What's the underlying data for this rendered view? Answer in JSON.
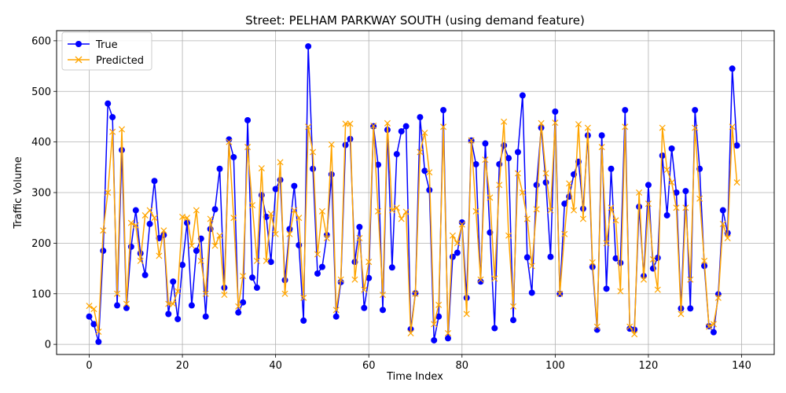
{
  "chart_data": {
    "type": "line",
    "title": "Street: PELHAM PARKWAY SOUTH (using demand feature)",
    "xlabel": "Time Index",
    "ylabel": "Traffic Volume",
    "xlim": [
      -7,
      147
    ],
    "ylim": [
      -20,
      620
    ],
    "xticks": [
      0,
      20,
      40,
      60,
      80,
      100,
      120,
      140
    ],
    "yticks": [
      0,
      100,
      200,
      300,
      400,
      500,
      600
    ],
    "grid": true,
    "legend": "top-left",
    "series": [
      {
        "name": "True",
        "color": "#0000ff",
        "marker": "circle",
        "values": [
          55,
          40,
          5,
          185,
          476,
          449,
          77,
          384,
          72,
          193,
          265,
          180,
          137,
          238,
          323,
          210,
          216,
          60,
          124,
          50,
          157,
          240,
          77,
          185,
          209,
          55,
          228,
          267,
          347,
          112,
          405,
          370,
          63,
          83,
          443,
          132,
          112,
          295,
          252,
          163,
          307,
          325,
          127,
          228,
          313,
          196,
          47,
          589,
          347,
          140,
          153,
          216,
          336,
          55,
          123,
          394,
          406,
          163,
          232,
          72,
          131,
          431,
          355,
          68,
          424,
          152,
          376,
          421,
          431,
          30,
          101,
          449,
          343,
          305,
          8,
          55,
          463,
          12,
          173,
          181,
          241,
          92,
          403,
          356,
          124,
          397,
          221,
          32,
          356,
          393,
          368,
          48,
          380,
          492,
          172,
          102,
          315,
          428,
          320,
          173,
          460,
          100,
          278,
          292,
          336,
          361,
          268,
          413,
          153,
          29,
          413,
          110,
          347,
          170,
          161,
          463,
          31,
          29,
          272,
          135,
          315,
          150,
          171,
          373,
          255,
          387,
          300,
          71,
          303,
          71,
          463,
          347,
          155,
          36,
          24,
          99,
          265,
          220,
          545,
          393
        ]
      },
      {
        "name": "Predicted",
        "color": "#ffa500",
        "marker": "x",
        "values": [
          76,
          70,
          25,
          225,
          300,
          420,
          100,
          425,
          80,
          240,
          235,
          165,
          255,
          265,
          250,
          175,
          225,
          80,
          80,
          105,
          252,
          250,
          195,
          265,
          165,
          100,
          248,
          195,
          215,
          98,
          400,
          250,
          75,
          135,
          390,
          275,
          165,
          348,
          165,
          258,
          218,
          360,
          100,
          218,
          265,
          250,
          92,
          430,
          380,
          178,
          263,
          210,
          395,
          68,
          128,
          436,
          436,
          128,
          210,
          108,
          163,
          432,
          263,
          98,
          437,
          265,
          270,
          248,
          262,
          22,
          100,
          380,
          418,
          340,
          40,
          78,
          430,
          22,
          215,
          200,
          237,
          60,
          403,
          263,
          128,
          365,
          290,
          130,
          315,
          440,
          215,
          75,
          338,
          300,
          248,
          155,
          267,
          437,
          338,
          265,
          438,
          100,
          218,
          318,
          265,
          435,
          248,
          428,
          162,
          35,
          390,
          200,
          270,
          245,
          105,
          430,
          35,
          20,
          300,
          128,
          278,
          168,
          108,
          428,
          345,
          320,
          270,
          60,
          270,
          128,
          428,
          288,
          165,
          35,
          40,
          92,
          238,
          210,
          430,
          320
        ]
      }
    ]
  }
}
